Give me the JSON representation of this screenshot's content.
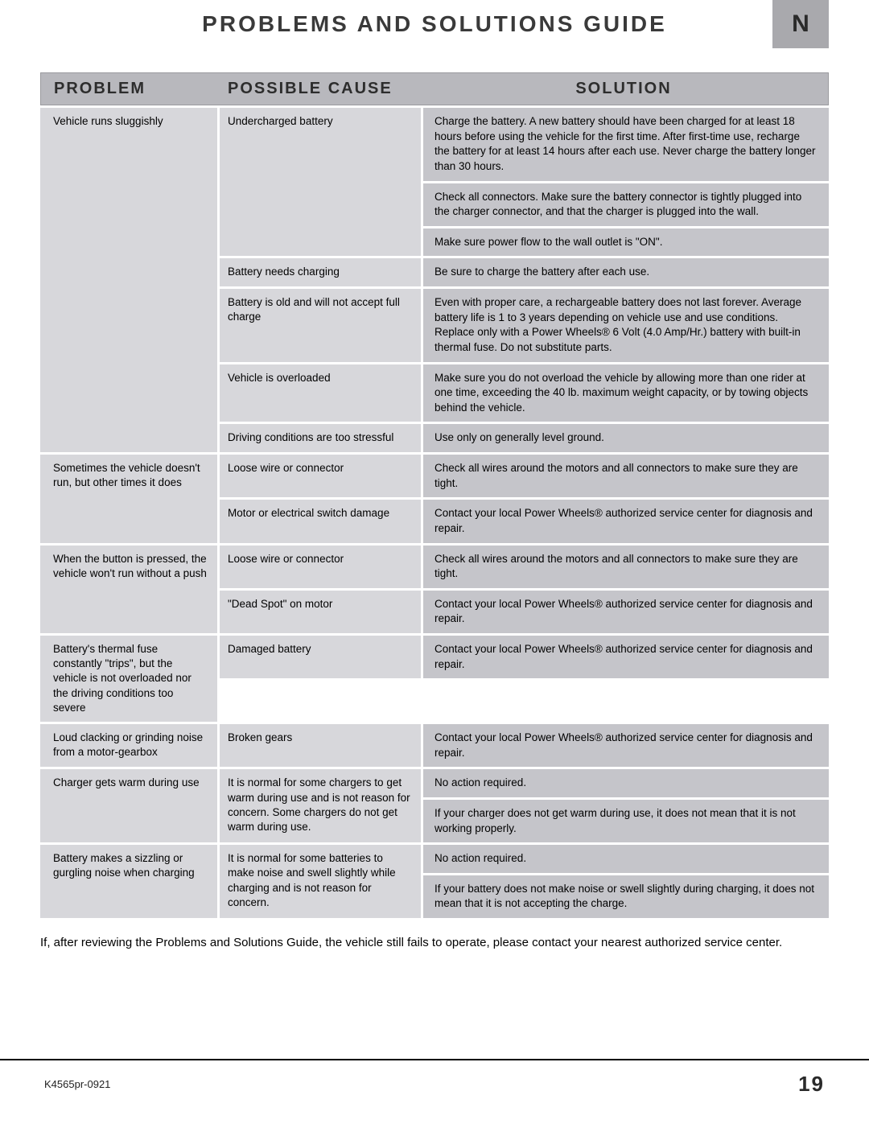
{
  "title": "PROBLEMS AND SOLUTIONS GUIDE",
  "badge": "N",
  "headers": {
    "problem": "PROBLEM",
    "cause": "POSSIBLE CAUSE",
    "solution": "SOLUTION"
  },
  "rows": [
    {
      "problem": "Vehicle runs sluggishly",
      "causes": [
        {
          "text": "Undercharged battery",
          "solutions": [
            "Charge the battery. A new battery should have been charged for at least 18 hours before using the vehicle for the first time. After first-time use, recharge the battery for at least 14 hours after each use. Never charge the battery longer than 30 hours.",
            "Check all connectors. Make sure the battery connector is tightly plugged into the charger connector, and that the charger is plugged into the wall.",
            "Make sure power flow to the wall outlet is \"ON\"."
          ]
        },
        {
          "text": "Battery needs charging",
          "solutions": [
            "Be sure to charge the battery after each use."
          ]
        },
        {
          "text": "Battery is old and will not accept full charge",
          "solutions": [
            "Even with proper care, a rechargeable battery does not last forever. Average battery life is 1 to 3 years depending on vehicle use and use conditions. Replace only with a Power Wheels® 6 Volt (4.0 Amp/Hr.) battery with built-in thermal fuse. Do not substitute parts."
          ]
        },
        {
          "text": "Vehicle is overloaded",
          "solutions": [
            "Make sure you do not overload the vehicle by allowing more than one rider at one time, exceeding the 40 lb. maximum weight capacity, or by towing objects behind the vehicle."
          ]
        },
        {
          "text": "Driving conditions are too stressful",
          "solutions": [
            "Use only on generally level ground."
          ]
        }
      ]
    },
    {
      "problem": "Sometimes the vehicle doesn't run, but other times it does",
      "causes": [
        {
          "text": "Loose wire or connector",
          "solutions": [
            "Check all wires around the motors and all connectors to make sure they are tight."
          ]
        },
        {
          "text": "Motor or electrical switch damage",
          "solutions": [
            "Contact your local Power Wheels® authorized service center for diagnosis and repair."
          ]
        }
      ]
    },
    {
      "problem": "When the button is pressed, the vehicle won't run without a push",
      "causes": [
        {
          "text": "Loose wire or connector",
          "solutions": [
            "Check all wires around the motors and all connectors to make sure they are tight."
          ]
        },
        {
          "text": "\"Dead Spot\" on motor",
          "solutions": [
            "Contact your local Power Wheels® authorized service center for diagnosis and repair."
          ]
        }
      ]
    },
    {
      "problem": "Battery's thermal fuse constantly \"trips\", but the vehicle is not overloaded nor the driving conditions too severe",
      "causes": [
        {
          "text": "Damaged battery",
          "solutions": [
            "Contact your local Power Wheels® authorized service center for diagnosis and repair."
          ]
        }
      ]
    },
    {
      "problem": "Loud clacking or grinding noise from a motor-gearbox",
      "causes": [
        {
          "text": "Broken gears",
          "solutions": [
            "Contact your local Power Wheels® authorized service center for diagnosis and repair."
          ]
        }
      ]
    },
    {
      "problem": "Charger gets warm during use",
      "causes": [
        {
          "text": "It is normal for some chargers to get warm during use and is not reason for concern. Some chargers do not get warm during use.",
          "solutions": [
            "No action required.",
            "If your charger does not get warm during use, it does not mean that it is not working properly."
          ]
        }
      ]
    },
    {
      "problem": "Battery makes a sizzling or gurgling noise when charging",
      "causes": [
        {
          "text": "It is normal for some batteries to make noise and swell slightly while charging and is not reason for concern.",
          "solutions": [
            "No action required.",
            "If your battery does not make noise or swell slightly during charging, it does not mean that it is not accepting the charge."
          ]
        }
      ]
    }
  ],
  "footer_note": "If, after reviewing the Problems and Solutions Guide, the vehicle still fails to operate, please contact your nearest authorized service center.",
  "doc_number": "K4565pr-0921",
  "page_number": "19"
}
